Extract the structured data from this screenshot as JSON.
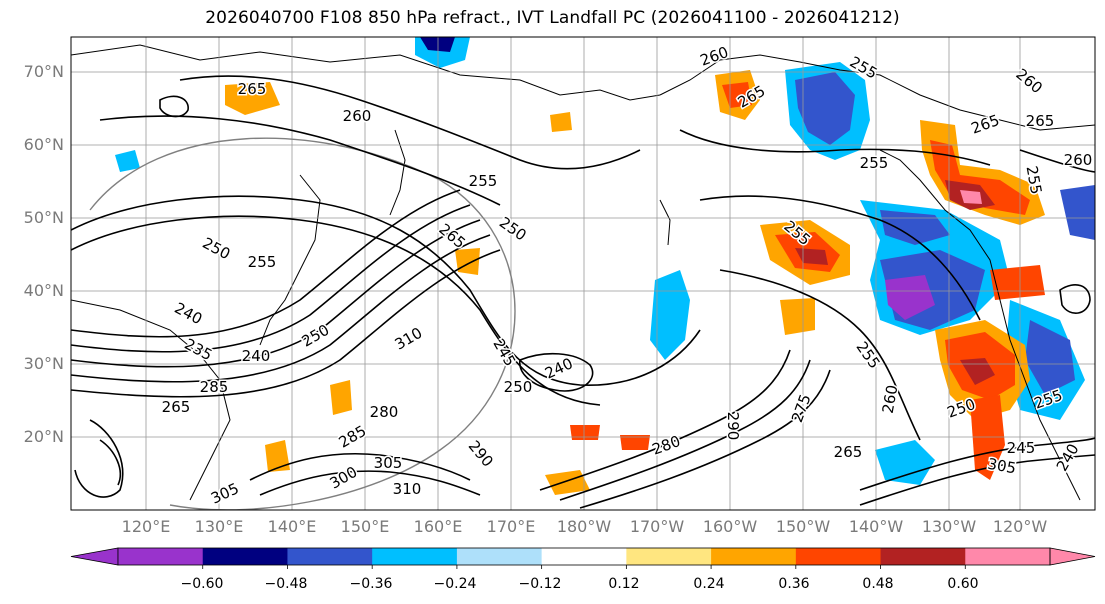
{
  "title": "2026040700 F108 850 hPa refract., IVT Landfall PC (2026041100 - 2026041212)",
  "map": {
    "lat_labels": [
      "70°N",
      "60°N",
      "50°N",
      "40°N",
      "30°N",
      "20°N"
    ],
    "lon_labels": [
      "120°E",
      "130°E",
      "140°E",
      "150°E",
      "160°E",
      "170°E",
      "180°W",
      "170°W",
      "160°W",
      "150°W",
      "140°W",
      "130°W",
      "120°W"
    ],
    "contour_labels": [
      {
        "text": "265"
      },
      {
        "text": "260"
      },
      {
        "text": "255"
      },
      {
        "text": "250"
      },
      {
        "text": "265"
      },
      {
        "text": "250"
      },
      {
        "text": "255"
      },
      {
        "text": "240"
      },
      {
        "text": "235"
      },
      {
        "text": "240"
      },
      {
        "text": "250"
      },
      {
        "text": "285"
      },
      {
        "text": "265"
      },
      {
        "text": "310"
      },
      {
        "text": "245"
      },
      {
        "text": "250"
      },
      {
        "text": "240"
      },
      {
        "text": "280"
      },
      {
        "text": "285"
      },
      {
        "text": "290"
      },
      {
        "text": "305"
      },
      {
        "text": "300"
      },
      {
        "text": "310"
      },
      {
        "text": "305"
      },
      {
        "text": "280"
      },
      {
        "text": "290"
      },
      {
        "text": "275"
      },
      {
        "text": "255"
      },
      {
        "text": "260"
      },
      {
        "text": "265"
      },
      {
        "text": "255"
      },
      {
        "text": "260"
      },
      {
        "text": "265"
      },
      {
        "text": "255"
      },
      {
        "text": "260"
      },
      {
        "text": "265"
      },
      {
        "text": "255"
      },
      {
        "text": "260"
      },
      {
        "text": "250"
      },
      {
        "text": "245"
      },
      {
        "text": "255"
      },
      {
        "text": "240"
      },
      {
        "text": "305"
      },
      {
        "text": "265"
      },
      {
        "text": "255"
      }
    ]
  },
  "colorbar": {
    "ticks": [
      "−0.60",
      "−0.48",
      "−0.36",
      "−0.24",
      "−0.12",
      "0.12",
      "0.24",
      "0.36",
      "0.48",
      "0.60"
    ],
    "colors": [
      "#9933cc",
      "#000080",
      "#3355cc",
      "#00bfff",
      "#aee0fa",
      "#ffffff",
      "#ffe680",
      "#ffa500",
      "#ff4500",
      "#b22222",
      "#ff88aa"
    ]
  }
}
